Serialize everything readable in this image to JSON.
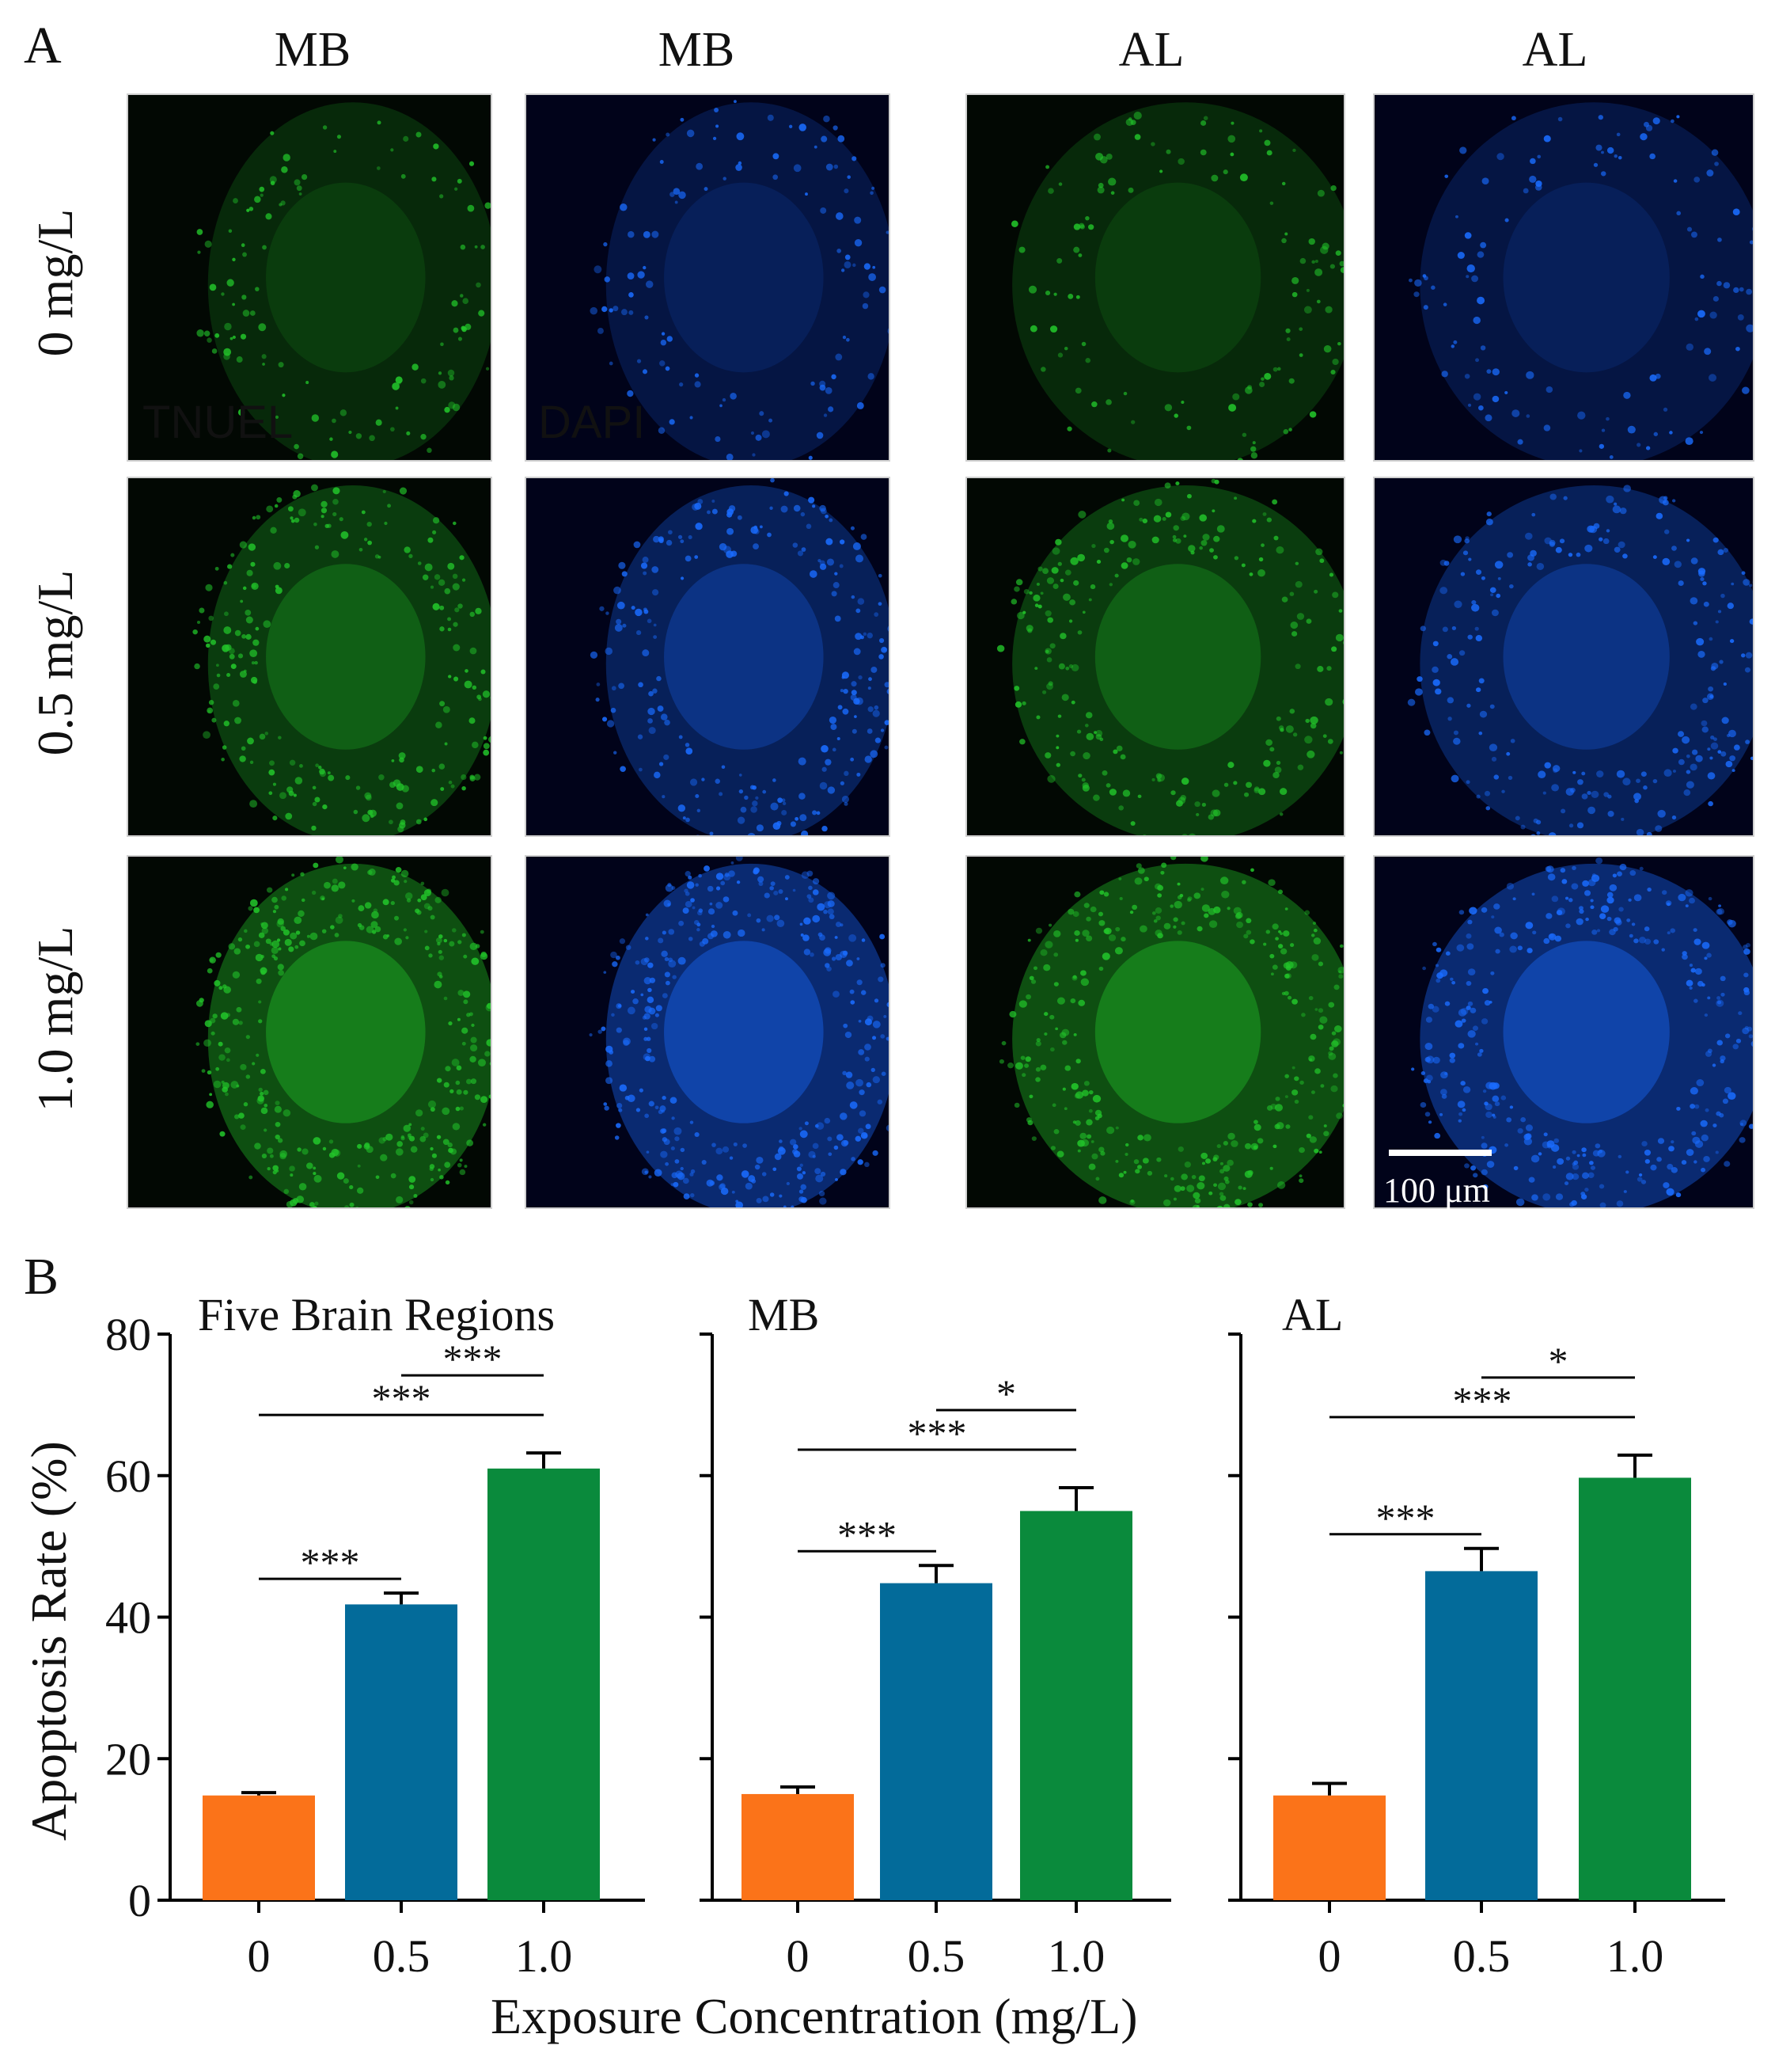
{
  "figure": {
    "panel_a_label": "A",
    "panel_b_label": "B",
    "column_headers": [
      "MB",
      "MB",
      "AL",
      "AL"
    ],
    "row_labels": [
      "0 mg/L",
      "0.5 mg/L",
      "1.0 mg/L"
    ],
    "stain_labels": {
      "tunel": "TNUEL",
      "dapi": "DAPI"
    },
    "stain_colors": {
      "tunel": "#22c42a",
      "dapi": "#1a6cff"
    },
    "scale_bar": "100 μm"
  },
  "chart_data": [
    {
      "type": "bar",
      "title": "Five Brain Regions",
      "categories": [
        "0",
        "0.5",
        "1.0"
      ],
      "values": [
        14.8,
        41.8,
        61.0
      ],
      "errors": [
        0.4,
        1.6,
        2.2
      ],
      "colors": [
        "#fb7319",
        "#036b9a",
        "#0a8a3c"
      ],
      "ylim": [
        0,
        80
      ],
      "yticks": [
        "0",
        "20",
        "40",
        "60",
        "80"
      ],
      "significance": [
        {
          "from": 0,
          "to": 1,
          "label": "***"
        },
        {
          "from": 0,
          "to": 2,
          "label": "***"
        },
        {
          "from": 1,
          "to": 2,
          "label": "***"
        }
      ]
    },
    {
      "type": "bar",
      "title": "MB",
      "categories": [
        "0",
        "0.5",
        "1.0"
      ],
      "values": [
        15.0,
        44.8,
        55.0
      ],
      "errors": [
        1.0,
        2.5,
        3.3
      ],
      "colors": [
        "#fb7319",
        "#036b9a",
        "#0a8a3c"
      ],
      "ylim": [
        0,
        80
      ],
      "yticks": [
        "",
        "",
        "",
        "",
        ""
      ],
      "significance": [
        {
          "from": 0,
          "to": 1,
          "label": "***"
        },
        {
          "from": 0,
          "to": 2,
          "label": "***"
        },
        {
          "from": 1,
          "to": 2,
          "label": "*"
        }
      ]
    },
    {
      "type": "bar",
      "title": "AL",
      "categories": [
        "0",
        "0.5",
        "1.0"
      ],
      "values": [
        14.8,
        46.5,
        59.7
      ],
      "errors": [
        1.7,
        3.2,
        3.2
      ],
      "colors": [
        "#fb7319",
        "#036b9a",
        "#0a8a3c"
      ],
      "ylim": [
        0,
        80
      ],
      "yticks": [
        "",
        "",
        "",
        "",
        ""
      ],
      "significance": [
        {
          "from": 0,
          "to": 1,
          "label": "***"
        },
        {
          "from": 0,
          "to": 2,
          "label": "***"
        },
        {
          "from": 1,
          "to": 2,
          "label": "*"
        }
      ]
    }
  ],
  "axes": {
    "ylabel": "Apoptosis Rate (%)",
    "xlabel": "Exposure Concentration (mg/L)"
  }
}
